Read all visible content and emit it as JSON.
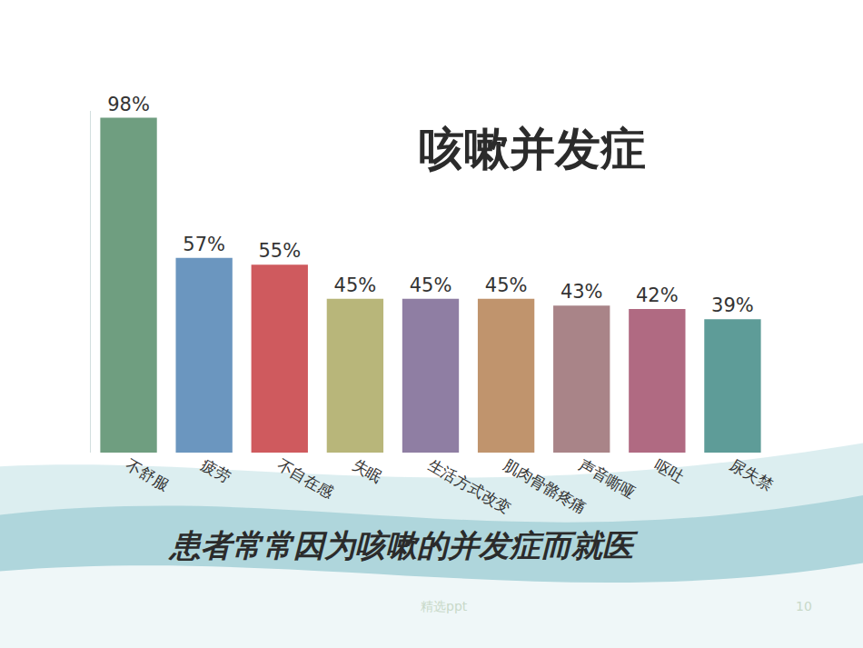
{
  "chart_data": {
    "type": "bar",
    "title": "咳嗽并发症",
    "subtitle": "患者常常因为咳嗽的并发症而就医",
    "categories": [
      "不舒服",
      "疲劳",
      "不自在感",
      "失眠",
      "生活方式改变",
      "肌肉骨骼疼痛",
      "声音嘶哑",
      "呕吐",
      "尿失禁"
    ],
    "values": [
      98,
      57,
      55,
      45,
      45,
      45,
      43,
      42,
      39
    ],
    "value_labels": [
      "98%",
      "57%",
      "55%",
      "45%",
      "45%",
      "45%",
      "43%",
      "42%",
      "39%"
    ],
    "colors": [
      "#6f9e80",
      "#6b96bf",
      "#cf5a5e",
      "#b8b67a",
      "#8f7ea3",
      "#c0946d",
      "#a98488",
      "#b06a82",
      "#5e9c98"
    ],
    "ylim": [
      0,
      100
    ],
    "data_labels": true,
    "tick_labels": "x",
    "grid": false,
    "annotations": [
      "精选ppt",
      "10"
    ]
  }
}
